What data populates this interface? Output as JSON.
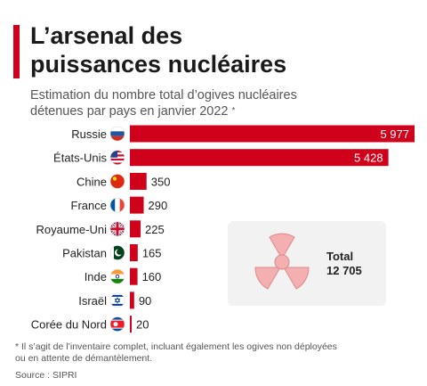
{
  "header": {
    "title_line1": "L’arsenal des",
    "title_line2": "puissances nucléaires",
    "subtitle_line1": "Estimation du nombre total d’ogives nucléaires",
    "subtitle_line2": "détenues par pays en janvier 2022",
    "subtitle_mark": "*"
  },
  "colors": {
    "accent": "#d0021b",
    "bar": "#d0021b",
    "total_icon": "#f4b0b0"
  },
  "chart_data": {
    "type": "bar",
    "orientation": "horizontal",
    "categories": [
      "Russie",
      "États-Unis",
      "Chine",
      "France",
      "Royaume-Uni",
      "Pakistan",
      "Inde",
      "Israël",
      "Corée du Nord"
    ],
    "values": [
      5977,
      5428,
      350,
      290,
      225,
      165,
      160,
      90,
      20
    ],
    "value_labels": [
      "5 977",
      "5 428",
      "350",
      "290",
      "225",
      "165",
      "160",
      "90",
      "20"
    ],
    "flags": [
      "russia-flag-icon",
      "usa-flag-icon",
      "china-flag-icon",
      "france-flag-icon",
      "uk-flag-icon",
      "pakistan-flag-icon",
      "india-flag-icon",
      "israel-flag-icon",
      "north-korea-flag-icon"
    ],
    "xlim": [
      0,
      5977
    ],
    "grid": false,
    "title": "L’arsenal des puissances nucléaires",
    "subtitle": "Estimation du nombre total d’ogives nucléaires détenues par pays en janvier 2022"
  },
  "total": {
    "label": "Total",
    "value": "12 705",
    "icon": "radiation-icon"
  },
  "footnote": {
    "line1": "* Il s’agit de l’inventaire complet, incluant également les ogives non déployées",
    "line2": "ou en attente de démantèlement."
  },
  "source": "Source : SIPRI"
}
